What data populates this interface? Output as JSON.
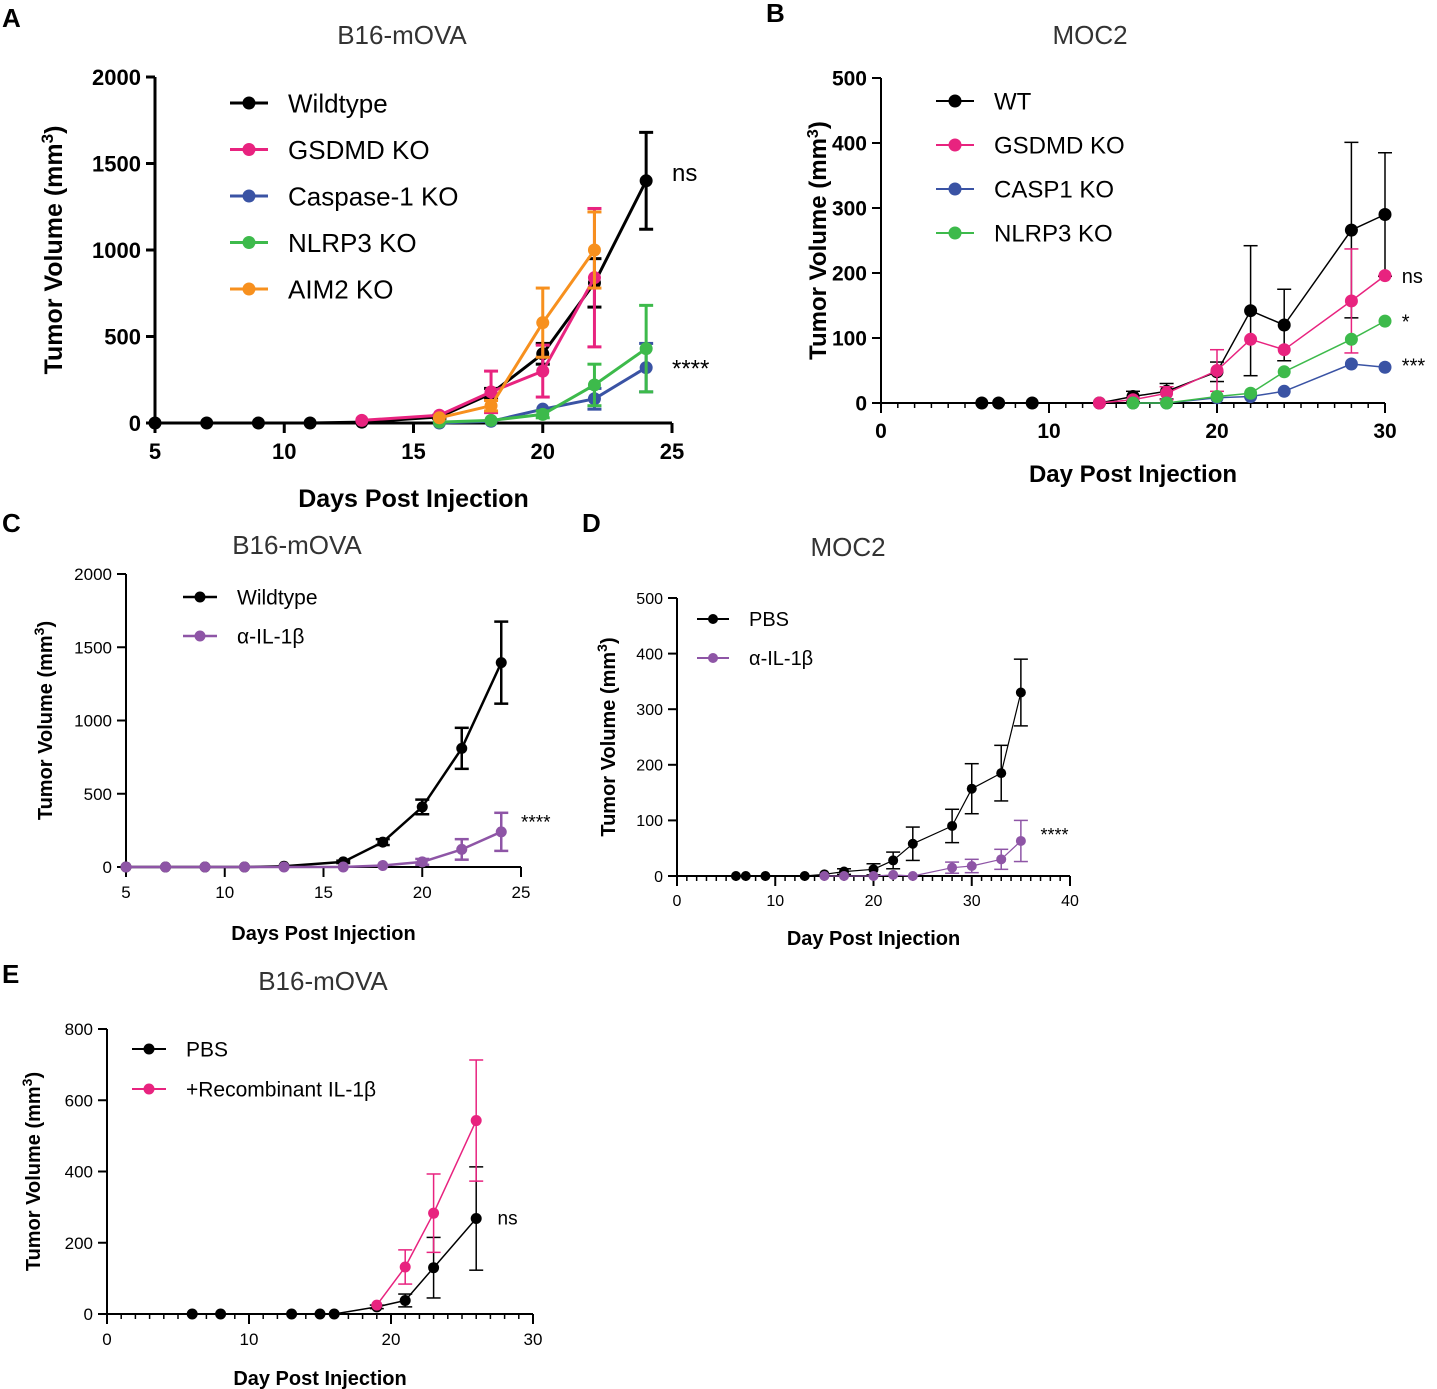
{
  "figure": {
    "colors": {
      "black": "#000000",
      "pink": "#e8237f",
      "blue": "#3a53a4",
      "green": "#3dba4b",
      "orange": "#f7901e",
      "purple": "#8e55a6"
    }
  },
  "chart_data": [
    {
      "id": "A",
      "panel_label": "A",
      "type": "line",
      "title": "B16-mOVA",
      "xlabel": "Days Post Injection",
      "ylabel": "Tumor Volume (mm",
      "ylabel_sup": "3",
      "ylabel_tail": ")",
      "xlim": [
        5,
        25
      ],
      "ylim": [
        0,
        2000
      ],
      "xticks": [
        5,
        10,
        15,
        20,
        25
      ],
      "yticks": [
        0,
        500,
        1000,
        1500,
        2000
      ],
      "legend_position": "top-left",
      "series": [
        {
          "name": "Wildtype",
          "color": "#000000",
          "x": [
            5,
            7,
            9,
            11,
            13,
            16,
            18,
            20,
            22,
            24
          ],
          "y": [
            0,
            0,
            0,
            0,
            5,
            35,
            170,
            400,
            810,
            1400
          ],
          "err": [
            0,
            0,
            0,
            0,
            0,
            10,
            30,
            60,
            140,
            280
          ]
        },
        {
          "name": "GSDMD KO",
          "color": "#e8237f",
          "x": [
            13,
            16,
            18,
            20,
            22
          ],
          "y": [
            15,
            45,
            180,
            300,
            840
          ],
          "err": [
            0,
            0,
            120,
            150,
            400
          ]
        },
        {
          "name": "Caspase-1 KO",
          "color": "#3a53a4",
          "x": [
            16,
            18,
            20,
            22,
            24
          ],
          "y": [
            0,
            10,
            80,
            140,
            320
          ],
          "err": [
            0,
            0,
            0,
            60,
            140
          ]
        },
        {
          "name": "NLRP3 KO",
          "color": "#3dba4b",
          "x": [
            16,
            18,
            20,
            22,
            24
          ],
          "y": [
            5,
            15,
            50,
            220,
            430
          ],
          "err": [
            0,
            0,
            20,
            120,
            250
          ]
        },
        {
          "name": "AIM2 KO",
          "color": "#f7901e",
          "x": [
            16,
            18,
            20,
            22
          ],
          "y": [
            30,
            100,
            580,
            1000
          ],
          "err": [
            0,
            30,
            200,
            220
          ]
        }
      ],
      "annotations": [
        {
          "text": "ns",
          "x": 25,
          "y": 1450
        },
        {
          "text": "****",
          "x": 25,
          "y": 320
        }
      ]
    },
    {
      "id": "B",
      "panel_label": "B",
      "type": "line",
      "title": "MOC2",
      "xlabel": "Day Post Injection",
      "ylabel": "Tumor Volume (mm",
      "ylabel_sup": "3",
      "ylabel_tail": ")",
      "xlim": [
        0,
        30
      ],
      "ylim": [
        0,
        500
      ],
      "xticks": [
        0,
        10,
        20,
        30
      ],
      "yticks": [
        0,
        100,
        200,
        300,
        400,
        500
      ],
      "legend_position": "top-left",
      "series": [
        {
          "name": "WT",
          "color": "#000000",
          "x": [
            6,
            7,
            9,
            13,
            15,
            17,
            20,
            22,
            24,
            28,
            30
          ],
          "y": [
            0,
            0,
            0,
            0,
            10,
            18,
            48,
            142,
            120,
            266,
            290
          ],
          "err": [
            0,
            0,
            0,
            0,
            8,
            12,
            15,
            100,
            55,
            135,
            95
          ]
        },
        {
          "name": "GSDMD KO",
          "color": "#e8237f",
          "x": [
            13,
            15,
            17,
            20,
            22,
            24,
            28,
            30
          ],
          "y": [
            0,
            5,
            15,
            50,
            98,
            82,
            157,
            196
          ],
          "err": [
            0,
            0,
            10,
            32,
            0,
            0,
            80,
            0
          ]
        },
        {
          "name": "CASP1 KO",
          "color": "#3a53a4",
          "x": [
            15,
            17,
            20,
            22,
            24,
            28,
            30
          ],
          "y": [
            0,
            0,
            8,
            10,
            18,
            60,
            55
          ],
          "err": [
            0,
            0,
            0,
            0,
            0,
            0,
            0
          ]
        },
        {
          "name": "NLRP3 KO",
          "color": "#3dba4b",
          "x": [
            15,
            17,
            20,
            22,
            24,
            28,
            30
          ],
          "y": [
            0,
            0,
            10,
            15,
            48,
            98,
            126
          ],
          "err": [
            0,
            0,
            0,
            0,
            0,
            0,
            0
          ]
        }
      ],
      "annotations": [
        {
          "text": "ns",
          "x": 31,
          "y": 196
        },
        {
          "text": "*",
          "x": 31,
          "y": 126
        },
        {
          "text": "***",
          "x": 31,
          "y": 58
        }
      ]
    },
    {
      "id": "C",
      "panel_label": "C",
      "type": "line",
      "title": "B16-mOVA",
      "xlabel": "Days Post Injection",
      "ylabel": "Tumor Volume (mm",
      "ylabel_sup": "3",
      "ylabel_tail": ")",
      "xlim": [
        5,
        25
      ],
      "ylim": [
        0,
        2000
      ],
      "xticks": [
        5,
        10,
        15,
        20,
        25
      ],
      "yticks": [
        0,
        500,
        1000,
        1500,
        2000
      ],
      "legend_position": "top-left",
      "series": [
        {
          "name": "Wildtype",
          "color": "#000000",
          "x": [
            5,
            7,
            9,
            11,
            13,
            16,
            18,
            20,
            22,
            24
          ],
          "y": [
            0,
            0,
            0,
            0,
            5,
            35,
            170,
            410,
            810,
            1395
          ],
          "err": [
            0,
            0,
            0,
            0,
            0,
            8,
            20,
            50,
            140,
            280
          ]
        },
        {
          "name": "α-IL-1β",
          "color": "#8e55a6",
          "x": [
            5,
            7,
            9,
            11,
            13,
            16,
            18,
            20,
            22,
            24
          ],
          "y": [
            0,
            0,
            0,
            0,
            0,
            0,
            10,
            35,
            120,
            240
          ],
          "err": [
            0,
            0,
            0,
            0,
            0,
            0,
            0,
            20,
            70,
            130
          ]
        }
      ],
      "annotations": [
        {
          "text": "****",
          "x": 25,
          "y": 310
        }
      ]
    },
    {
      "id": "D",
      "panel_label": "D",
      "type": "line",
      "title": "MOC2",
      "xlabel": "Day Post Injection",
      "ylabel": "Tumor Volume (mm",
      "ylabel_sup": "3",
      "ylabel_tail": ")",
      "xlim": [
        0,
        40
      ],
      "ylim": [
        0,
        500
      ],
      "xticks": [
        0,
        10,
        20,
        30,
        40
      ],
      "yticks": [
        0,
        100,
        200,
        300,
        400,
        500
      ],
      "legend_position": "top-left",
      "series": [
        {
          "name": "PBS",
          "color": "#000000",
          "x": [
            6,
            7,
            9,
            13,
            15,
            17,
            20,
            22,
            24,
            28,
            30,
            33,
            35
          ],
          "y": [
            0,
            0,
            0,
            0,
            3,
            8,
            12,
            28,
            58,
            90,
            157,
            185,
            330
          ],
          "err": [
            0,
            0,
            0,
            0,
            0,
            5,
            10,
            15,
            30,
            30,
            45,
            50,
            60
          ]
        },
        {
          "name": "α-IL-1β",
          "color": "#8e55a6",
          "x": [
            15,
            17,
            20,
            22,
            24,
            28,
            30,
            33,
            35
          ],
          "y": [
            0,
            0,
            0,
            2,
            0,
            15,
            18,
            30,
            63
          ],
          "err": [
            0,
            0,
            0,
            0,
            0,
            10,
            12,
            18,
            37
          ]
        }
      ],
      "annotations": [
        {
          "text": "****",
          "x": 37,
          "y": 75
        }
      ]
    },
    {
      "id": "E",
      "panel_label": "E",
      "type": "line",
      "title": "B16-mOVA",
      "xlabel": "Day Post Injection",
      "ylabel": "Tumor Volume (mm",
      "ylabel_sup": "3",
      "ylabel_tail": ")",
      "xlim": [
        0,
        30
      ],
      "ylim": [
        0,
        800
      ],
      "xticks": [
        0,
        10,
        20,
        30
      ],
      "yticks": [
        0,
        200,
        400,
        600,
        800
      ],
      "legend_position": "top-left",
      "series": [
        {
          "name": "PBS",
          "color": "#000000",
          "x": [
            6,
            8,
            13,
            15,
            16,
            19,
            21,
            23,
            26
          ],
          "y": [
            0,
            0,
            0,
            0,
            0,
            20,
            38,
            130,
            268
          ],
          "err": [
            0,
            0,
            0,
            0,
            0,
            5,
            18,
            85,
            145
          ]
        },
        {
          "name": "+Recombinant IL-1β",
          "color": "#e8237f",
          "x": [
            19,
            21,
            23,
            26
          ],
          "y": [
            25,
            132,
            283,
            543
          ],
          "err": [
            0,
            48,
            110,
            170
          ]
        }
      ],
      "annotations": [
        {
          "text": "ns",
          "x": 27.5,
          "y": 270
        }
      ]
    }
  ]
}
